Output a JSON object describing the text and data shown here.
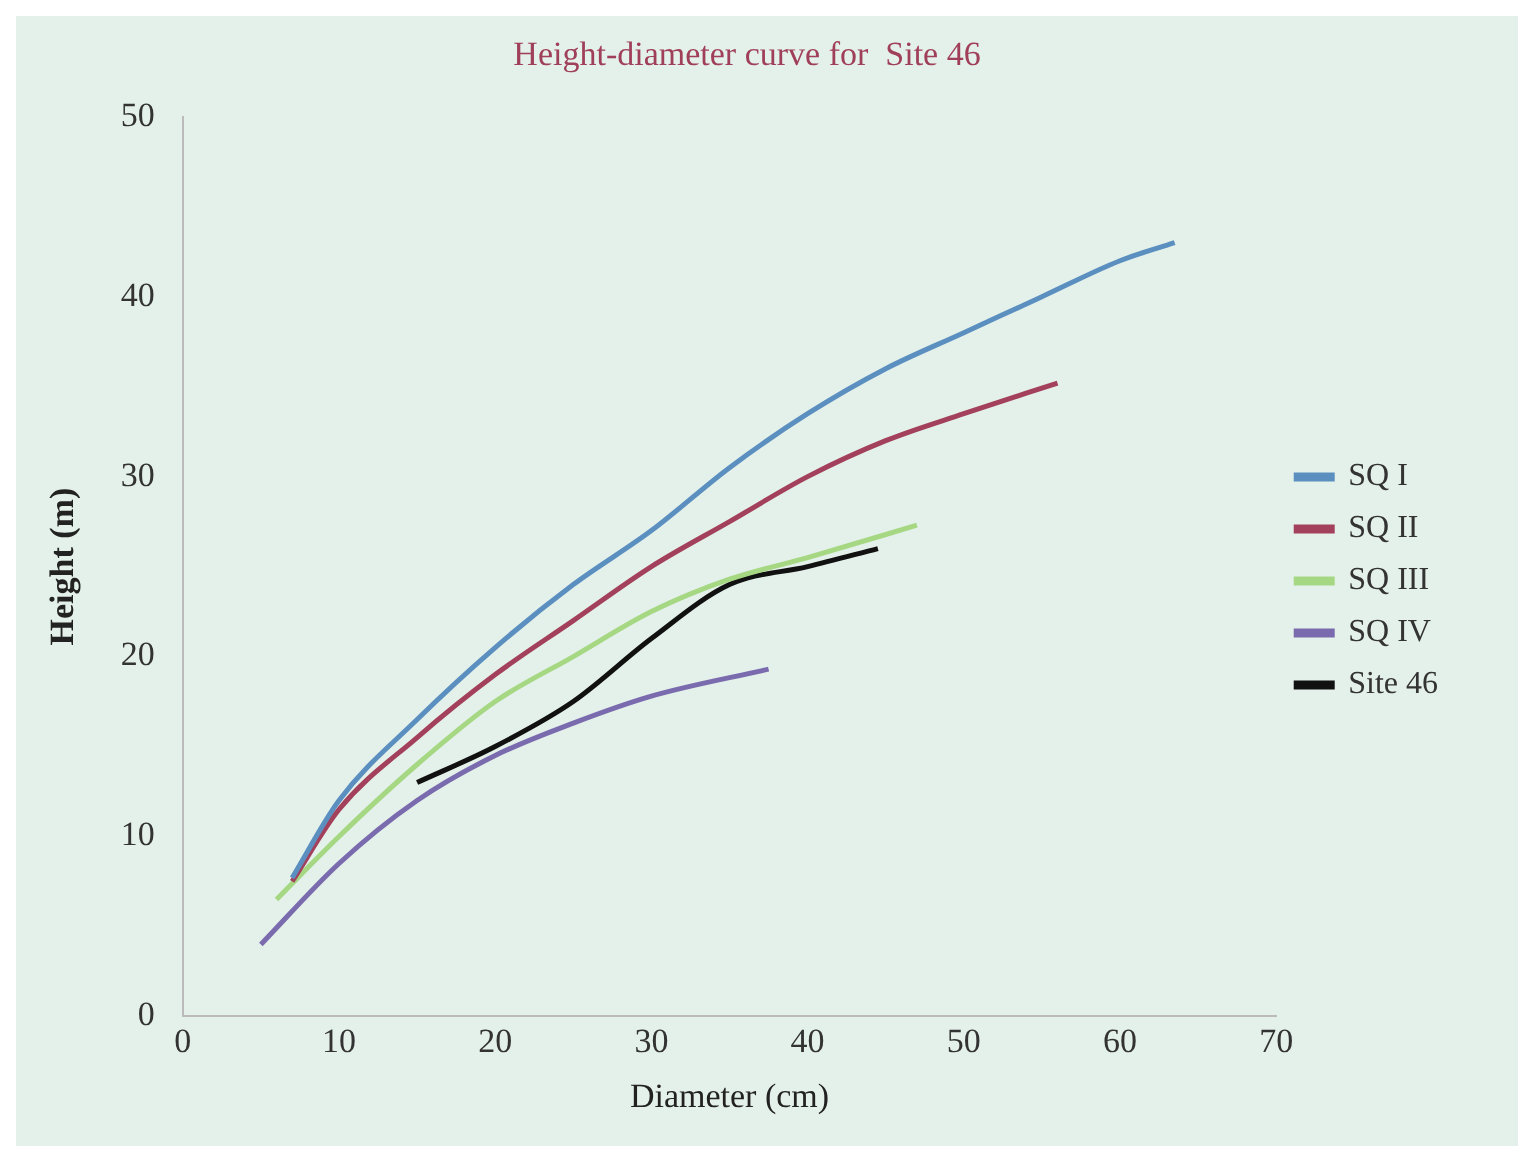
{
  "chart_data": {
    "type": "line",
    "title": "Height-diameter curve for  Site 46",
    "xlabel": "Diameter (cm)",
    "ylabel": "Height (m)",
    "xlim": [
      0,
      70
    ],
    "xticks": [
      0,
      10,
      20,
      30,
      40,
      50,
      60,
      70
    ],
    "ylim": [
      0,
      50
    ],
    "yticks": [
      0,
      10,
      20,
      30,
      40,
      50
    ],
    "grid": false,
    "legend": "right",
    "series": [
      {
        "name": "SQ I",
        "color": "#5b8fc0",
        "x": [
          7,
          10,
          15,
          20,
          25,
          30,
          35,
          40,
          45,
          50,
          55,
          60,
          63.5
        ],
        "values": [
          7.7,
          12,
          16.5,
          20.5,
          24,
          27,
          30.5,
          33.5,
          36,
          38,
          40,
          42,
          43
        ]
      },
      {
        "name": "SQ II",
        "color": "#a3405c",
        "x": [
          7,
          10,
          15,
          20,
          25,
          30,
          35,
          40,
          45,
          50,
          56
        ],
        "values": [
          7.5,
          11.5,
          15.5,
          19,
          22,
          25,
          27.5,
          30,
          32,
          33.5,
          35.2
        ]
      },
      {
        "name": "SQ III",
        "color": "#a6d884",
        "x": [
          6,
          10,
          15,
          20,
          25,
          30,
          35,
          40,
          47
        ],
        "values": [
          6.5,
          10,
          14,
          17.5,
          20,
          22.5,
          24.3,
          25.5,
          27.3
        ]
      },
      {
        "name": "SQ IV",
        "color": "#7a6bae",
        "x": [
          5,
          10,
          15,
          20,
          25,
          30,
          37.5
        ],
        "values": [
          4,
          8.5,
          12,
          14.5,
          16.3,
          17.8,
          19.3
        ]
      },
      {
        "name": "Site 46",
        "color": "#111111",
        "x": [
          15,
          20,
          25,
          30,
          35,
          40,
          44.5
        ],
        "values": [
          13,
          15,
          17.5,
          21,
          24,
          25,
          26
        ]
      }
    ]
  }
}
